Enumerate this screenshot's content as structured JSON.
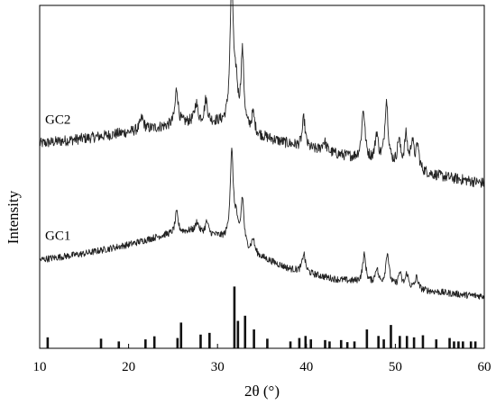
{
  "chart_data": {
    "type": "line",
    "title": "",
    "xlabel": "2θ (°)",
    "ylabel": "Intensity",
    "xlim": [
      10,
      60
    ],
    "xticks": [
      "10",
      "20",
      "30",
      "40",
      "50",
      "60"
    ],
    "ylim": [
      0,
      100
    ],
    "y_ticks_shown": false,
    "grid": false,
    "legend": "none",
    "series": [
      {
        "name": "GC2",
        "color": "#222222",
        "noise": 1.6,
        "baseline": [
          [
            10,
            59.7
          ],
          [
            16,
            61.5
          ],
          [
            22,
            63.8
          ],
          [
            27,
            65.9
          ],
          [
            30,
            65.6
          ],
          [
            34,
            62.3
          ],
          [
            40,
            58.2
          ],
          [
            45,
            55.7
          ],
          [
            50,
            53.0
          ],
          [
            55,
            50.2
          ],
          [
            60,
            48.1
          ]
        ],
        "peaks": [
          {
            "x": 21.5,
            "height": 3.5,
            "width": 0.25
          },
          {
            "x": 25.4,
            "height": 10.5,
            "width": 0.2
          },
          {
            "x": 27.6,
            "height": 5.5,
            "width": 0.2
          },
          {
            "x": 28.7,
            "height": 6.5,
            "width": 0.2
          },
          {
            "x": 31.6,
            "height": 43.0,
            "width": 0.22
          },
          {
            "x": 32.1,
            "height": 10.0,
            "width": 0.2
          },
          {
            "x": 32.8,
            "height": 22.0,
            "width": 0.2
          },
          {
            "x": 34.0,
            "height": 5.5,
            "width": 0.2
          },
          {
            "x": 39.7,
            "height": 8.5,
            "width": 0.2
          },
          {
            "x": 42.0,
            "height": 3.0,
            "width": 0.3
          },
          {
            "x": 46.4,
            "height": 14.5,
            "width": 0.22
          },
          {
            "x": 47.9,
            "height": 8.0,
            "width": 0.2
          },
          {
            "x": 49.0,
            "height": 18.5,
            "width": 0.22
          },
          {
            "x": 50.4,
            "height": 7.5,
            "width": 0.2
          },
          {
            "x": 51.2,
            "height": 9.0,
            "width": 0.2
          },
          {
            "x": 51.9,
            "height": 8.0,
            "width": 0.2
          },
          {
            "x": 52.5,
            "height": 7.0,
            "width": 0.2
          }
        ]
      },
      {
        "name": "GC1",
        "color": "#222222",
        "noise": 1.0,
        "baseline": [
          [
            10,
            25.8
          ],
          [
            15,
            27.6
          ],
          [
            20,
            30.2
          ],
          [
            24,
            33.0
          ],
          [
            27,
            34.2
          ],
          [
            30,
            32.5
          ],
          [
            34,
            27.5
          ],
          [
            38,
            23.2
          ],
          [
            43,
            20.2
          ],
          [
            48,
            18.6
          ],
          [
            53,
            16.9
          ],
          [
            58,
            15.5
          ],
          [
            60,
            15.2
          ]
        ],
        "peaks": [
          {
            "x": 25.4,
            "height": 6.0,
            "width": 0.2
          },
          {
            "x": 27.7,
            "height": 3.0,
            "width": 0.2
          },
          {
            "x": 28.8,
            "height": 3.5,
            "width": 0.2
          },
          {
            "x": 31.6,
            "height": 26.0,
            "width": 0.22
          },
          {
            "x": 32.1,
            "height": 6.0,
            "width": 0.2
          },
          {
            "x": 32.8,
            "height": 14.0,
            "width": 0.2
          },
          {
            "x": 34.0,
            "height": 4.0,
            "width": 0.2
          },
          {
            "x": 39.7,
            "height": 5.5,
            "width": 0.2
          },
          {
            "x": 46.5,
            "height": 8.0,
            "width": 0.22
          },
          {
            "x": 47.9,
            "height": 4.5,
            "width": 0.2
          },
          {
            "x": 49.1,
            "height": 9.5,
            "width": 0.22
          },
          {
            "x": 50.5,
            "height": 4.0,
            "width": 0.2
          },
          {
            "x": 51.3,
            "height": 4.0,
            "width": 0.2
          },
          {
            "x": 52.4,
            "height": 3.5,
            "width": 0.2
          }
        ]
      }
    ],
    "reference_pattern": {
      "color": "#111111",
      "lines": [
        {
          "x": 10.9,
          "height": 3.2
        },
        {
          "x": 16.9,
          "height": 2.8
        },
        {
          "x": 18.9,
          "height": 2.0
        },
        {
          "x": 21.9,
          "height": 2.6
        },
        {
          "x": 22.9,
          "height": 3.5
        },
        {
          "x": 25.5,
          "height": 3.0
        },
        {
          "x": 25.9,
          "height": 7.5
        },
        {
          "x": 28.1,
          "height": 4.0
        },
        {
          "x": 29.1,
          "height": 4.5
        },
        {
          "x": 31.9,
          "height": 18.0
        },
        {
          "x": 32.3,
          "height": 8.0
        },
        {
          "x": 33.1,
          "height": 9.5
        },
        {
          "x": 34.1,
          "height": 5.5
        },
        {
          "x": 35.6,
          "height": 2.8
        },
        {
          "x": 38.2,
          "height": 2.0
        },
        {
          "x": 39.2,
          "height": 3.0
        },
        {
          "x": 39.9,
          "height": 3.6
        },
        {
          "x": 40.5,
          "height": 2.6
        },
        {
          "x": 42.1,
          "height": 2.4
        },
        {
          "x": 42.6,
          "height": 2.0
        },
        {
          "x": 43.9,
          "height": 2.4
        },
        {
          "x": 44.6,
          "height": 1.8
        },
        {
          "x": 45.4,
          "height": 2.0
        },
        {
          "x": 46.8,
          "height": 5.5
        },
        {
          "x": 48.1,
          "height": 3.6
        },
        {
          "x": 48.7,
          "height": 2.6
        },
        {
          "x": 49.5,
          "height": 6.8
        },
        {
          "x": 50.5,
          "height": 3.6
        },
        {
          "x": 51.3,
          "height": 3.6
        },
        {
          "x": 52.1,
          "height": 3.2
        },
        {
          "x": 53.1,
          "height": 3.8
        },
        {
          "x": 54.6,
          "height": 2.6
        },
        {
          "x": 56.1,
          "height": 3.0
        },
        {
          "x": 56.6,
          "height": 2.0
        },
        {
          "x": 57.1,
          "height": 2.0
        },
        {
          "x": 57.6,
          "height": 2.0
        },
        {
          "x": 58.5,
          "height": 2.0
        },
        {
          "x": 59.0,
          "height": 2.0
        }
      ]
    }
  }
}
